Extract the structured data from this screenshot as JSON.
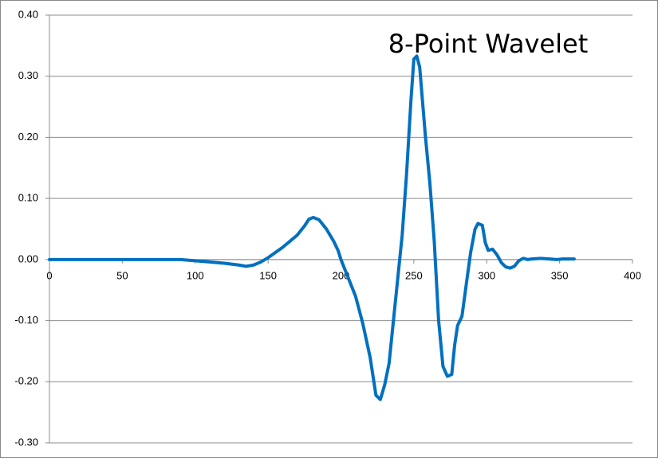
{
  "chart_data": {
    "type": "line",
    "title": "8-Point  Wavelet",
    "x": [
      0,
      10,
      20,
      30,
      40,
      50,
      60,
      70,
      80,
      90,
      100,
      110,
      120,
      130,
      135,
      140,
      145,
      150,
      160,
      170,
      175,
      178,
      181,
      185,
      190,
      195,
      198,
      200,
      205,
      210,
      215,
      220,
      224,
      227,
      230,
      233,
      236,
      239,
      242,
      245,
      248,
      250,
      252,
      254,
      258,
      261,
      264,
      267,
      270,
      273,
      276,
      278,
      280,
      283,
      286,
      289,
      292,
      294,
      297,
      299,
      301,
      304,
      307,
      310,
      313,
      316,
      319,
      322,
      325,
      328,
      331,
      337,
      343,
      348,
      352,
      360
    ],
    "series": [
      {
        "name": "Wavelet",
        "color": "#0070c0",
        "values": [
          0,
          0,
          0,
          0,
          0,
          0,
          0,
          0,
          0,
          0,
          -0.002,
          -0.004,
          -0.006,
          -0.009,
          -0.011,
          -0.009,
          -0.004,
          0.003,
          0.02,
          0.04,
          0.055,
          0.066,
          0.069,
          0.065,
          0.05,
          0.03,
          0.015,
          0.0,
          -0.03,
          -0.06,
          -0.105,
          -0.16,
          -0.222,
          -0.229,
          -0.205,
          -0.17,
          -0.1,
          -0.03,
          0.04,
          0.14,
          0.26,
          0.328,
          0.333,
          0.315,
          0.2,
          0.125,
          0.03,
          -0.1,
          -0.175,
          -0.191,
          -0.188,
          -0.14,
          -0.108,
          -0.093,
          -0.04,
          0.012,
          0.05,
          0.059,
          0.056,
          0.028,
          0.015,
          0.017,
          0.008,
          -0.005,
          -0.012,
          -0.014,
          -0.011,
          -0.002,
          0.002,
          0.0,
          0.001,
          0.002,
          0.001,
          0.0,
          0.001,
          0.001
        ]
      }
    ],
    "xlim": [
      0,
      400
    ],
    "xticks": [
      0,
      50,
      100,
      150,
      200,
      250,
      300,
      350,
      400
    ],
    "ylim": [
      -0.3,
      0.4
    ],
    "yticks": [
      {
        "value": -0.3,
        "label": "-0.30"
      },
      {
        "value": -0.2,
        "label": "-0.20"
      },
      {
        "value": -0.1,
        "label": "-0.10"
      },
      {
        "value": 0,
        "label": "0.00"
      },
      {
        "value": 0.1,
        "label": "0.10"
      },
      {
        "value": 0.2,
        "label": "0.20"
      },
      {
        "value": 0.3,
        "label": "0.30"
      },
      {
        "value": 0.4,
        "label": "0.40"
      }
    ],
    "grid": true
  }
}
